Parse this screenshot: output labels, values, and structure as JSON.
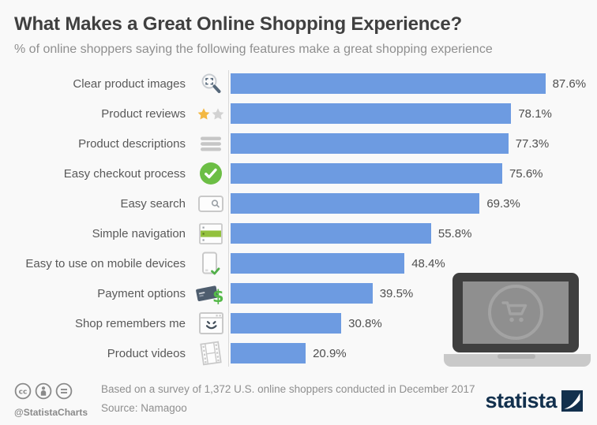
{
  "chart_data": {
    "type": "bar",
    "orientation": "horizontal",
    "title": "What Makes a Great Online Shopping Experience?",
    "subtitle": "% of online shoppers saying the following features make a great shopping experience",
    "categories": [
      "Clear product images",
      "Product reviews",
      "Product descriptions",
      "Easy checkout process",
      "Easy search",
      "Simple navigation",
      "Easy to use on mobile devices",
      "Payment options",
      "Shop remembers me",
      "Product videos"
    ],
    "values": [
      87.6,
      78.1,
      77.3,
      75.6,
      69.3,
      55.8,
      48.4,
      39.5,
      30.8,
      20.9
    ],
    "value_labels": [
      "87.6%",
      "78.1%",
      "77.3%",
      "75.6%",
      "69.3%",
      "55.8%",
      "48.4%",
      "39.5%",
      "30.8%",
      "20.9%"
    ],
    "icons": [
      "image-zoom-icon",
      "star-rating-icon",
      "text-lines-icon",
      "check-circle-icon",
      "search-box-icon",
      "nav-list-icon",
      "mobile-check-icon",
      "credit-card-dollar-icon",
      "browser-smile-icon",
      "film-strip-icon"
    ],
    "xlim": [
      0,
      100
    ],
    "grid": false,
    "legend": "none",
    "bar_color": "#6D9BE1"
  },
  "footer": {
    "license_icons": [
      "cc-icon",
      "attribution-icon",
      "no-derivatives-icon"
    ],
    "handle": "@StatistaCharts",
    "note": "Based on a survey of 1,372 U.S. online shoppers conducted in December 2017",
    "source": "Source: Namagoo",
    "brand": "statista"
  },
  "graphic": {
    "name": "laptop-with-shopping-cart"
  },
  "colors": {
    "bar": "#6D9BE1",
    "background": "#f9f9f9",
    "title": "#404040",
    "subtitle": "#8f8f8f",
    "label": "#595959",
    "value": "#4f4f4f",
    "green": "#6CBE45",
    "gold": "#F3B843",
    "brand_navy": "#12304D",
    "axis_line": "#D9D9D9"
  }
}
